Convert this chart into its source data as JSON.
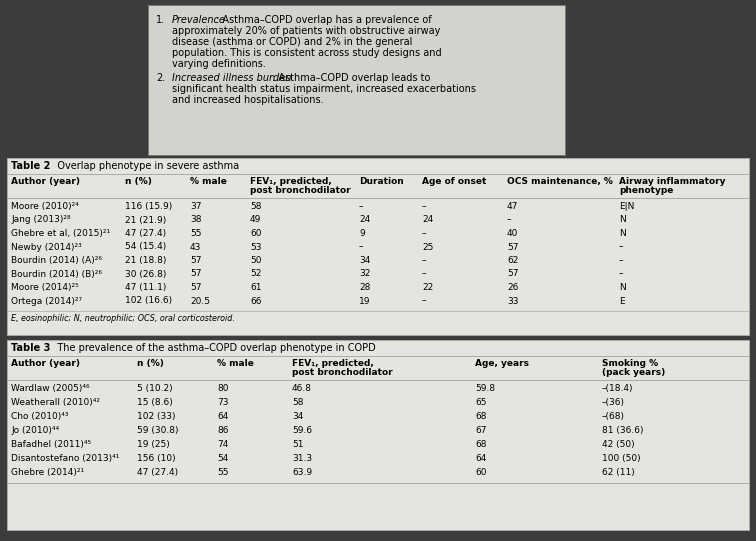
{
  "text_block": {
    "items": [
      {
        "number": "1.",
        "italic": "Prevalence",
        "rest": ": Asthma–COPD overlap has a prevalence of approximately 20% of patients with obstructive airway disease (asthma or COPD) and 2% in the general population. This is consistent across study designs and varying definitions."
      },
      {
        "number": "2.",
        "italic": "Increased illness burden",
        "rest": ": Asthma–COPD overlap leads to significant health status impairment, increased exacerbations and increased hospitalisations."
      }
    ]
  },
  "table2": {
    "title_bold": "Table 2",
    "title_rest": "   Overlap phenotype in severe asthma",
    "col_headers": [
      [
        "Author (year)",
        ""
      ],
      [
        "n (%)",
        ""
      ],
      [
        "% male",
        ""
      ],
      [
        "FEV₁, predicted,",
        "post bronchodilator"
      ],
      [
        "Duration",
        ""
      ],
      [
        "Age of onset",
        ""
      ],
      [
        "OCS maintenance, %",
        ""
      ],
      [
        "Airway inflammatory",
        "phenotype"
      ]
    ],
    "rows": [
      [
        "Moore (2010)²⁴",
        "116 (15.9)",
        "37",
        "58",
        "–",
        "–",
        "47",
        "E|N"
      ],
      [
        "Jang (2013)²⁸",
        "21 (21.9)",
        "38",
        "49",
        "24",
        "24",
        "–",
        "N"
      ],
      [
        "Ghebre et al, (2015)²¹",
        "47 (27.4)",
        "55",
        "60",
        "9",
        "–",
        "40",
        "N"
      ],
      [
        "Newby (2014)²³",
        "54 (15.4)",
        "43",
        "53",
        "–",
        "25",
        "57",
        "–"
      ],
      [
        "Bourdin (2014) (A)²⁶",
        "21 (18.8)",
        "57",
        "50",
        "34",
        "–",
        "62",
        "–"
      ],
      [
        "Bourdin (2014) (B)²⁶",
        "30 (26.8)",
        "57",
        "52",
        "32",
        "–",
        "57",
        "–"
      ],
      [
        "Moore (2014)²⁵",
        "47 (11.1)",
        "57",
        "61",
        "28",
        "22",
        "26",
        "N"
      ],
      [
        "Ortega (2014)²⁷",
        "102 (16.6)",
        "20.5",
        "66",
        "19",
        "–",
        "33",
        "E"
      ]
    ],
    "footnote": "E, eosinophilic; N, neutrophilic; OCS, oral corticosteroid."
  },
  "table3": {
    "title_bold": "Table 3",
    "title_rest": "   The prevalence of the asthma–COPD overlap phenotype in COPD",
    "col_headers": [
      [
        "Author (year)",
        ""
      ],
      [
        "n (%)",
        ""
      ],
      [
        "% male",
        ""
      ],
      [
        "FEV₁, predicted,",
        "post bronchodilator"
      ],
      [
        "Age, years",
        ""
      ],
      [
        "Smoking %",
        "(pack years)"
      ]
    ],
    "rows": [
      [
        "Wardlaw (2005)⁴⁶",
        "5 (10.2)",
        "80",
        "46.8",
        "59.8",
        "–(18.4)"
      ],
      [
        "Weatherall (2010)⁴²",
        "15 (8.6)",
        "73",
        "58",
        "65",
        "–(36)"
      ],
      [
        "Cho (2010)⁴³",
        "102 (33)",
        "64",
        "34",
        "68",
        "–(68)"
      ],
      [
        "Jo (2010)⁴⁴",
        "59 (30.8)",
        "86",
        "59.6",
        "67",
        "81 (36.6)"
      ],
      [
        "Bafadhel (2011)⁴⁵",
        "19 (25)",
        "74",
        "51",
        "68",
        "42 (50)"
      ],
      [
        "Disantostefano (2013)⁴¹",
        "156 (10)",
        "54",
        "31.3",
        "64",
        "100 (50)"
      ],
      [
        "Ghebre (2014)²¹",
        "47 (27.4)",
        "55",
        "63.9",
        "60",
        "62 (11)"
      ]
    ]
  },
  "bg_dark": "#3c3c3c",
  "table_bg": "#e6e4df",
  "text_box_bg": "#d4d2cd",
  "border_color": "#aaaaaa",
  "fs_title": 7.0,
  "fs_hdr": 6.5,
  "fs_data": 6.5,
  "fs_footnote": 5.8
}
